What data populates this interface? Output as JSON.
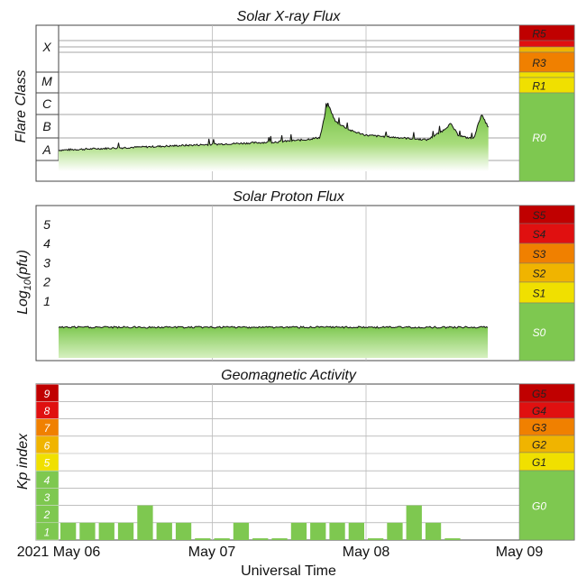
{
  "chart_data": [
    {
      "type": "area",
      "title": "Solar X-ray Flux",
      "ylabel": "Flare Class",
      "ytick_labels": [
        "X",
        "M",
        "C",
        "B",
        "A"
      ],
      "x": [
        0,
        0.2,
        0.4,
        0.6,
        0.8,
        1.0,
        1.2,
        1.4,
        1.6,
        1.7,
        1.75,
        1.8,
        1.9,
        2.0,
        2.2,
        2.4,
        2.5,
        2.55,
        2.6,
        2.65,
        2.7,
        2.75,
        2.8
      ],
      "values_log_wm2": [
        -7.55,
        -7.5,
        -7.45,
        -7.4,
        -7.35,
        -7.3,
        -7.25,
        -7.2,
        -7.1,
        -7.0,
        -5.5,
        -6.3,
        -6.7,
        -6.9,
        -7.0,
        -7.1,
        -6.7,
        -6.4,
        -6.9,
        -7.0,
        -7.05,
        -6.0,
        -6.6
      ],
      "scale_labels": [
        "R5",
        "R3",
        "R1",
        "R0"
      ],
      "scale_colors": [
        "#c00000",
        "#f08000",
        "#f0e000",
        "#7ec850"
      ]
    },
    {
      "type": "area",
      "title": "Solar Proton Flux",
      "ylabel_main": "Log",
      "ylabel_sub": "10",
      "ylabel_tail": "(pfu)",
      "ytick_labels": [
        "5",
        "4",
        "3",
        "2",
        "1"
      ],
      "x": [
        0,
        0.5,
        1.0,
        1.5,
        2.0,
        2.5,
        2.8
      ],
      "values_log_pfu": [
        -0.15,
        -0.14,
        -0.16,
        -0.15,
        -0.14,
        -0.15,
        -0.15
      ],
      "scale_labels": [
        "S5",
        "S4",
        "S3",
        "S2",
        "S1",
        "S0"
      ],
      "scale_colors": [
        "#c00000",
        "#e01010",
        "#f08000",
        "#f0b400",
        "#f0e000",
        "#7ec850"
      ]
    },
    {
      "type": "bar",
      "title": "Geomagnetic Activity",
      "ylabel": "Kp index",
      "ytick_labels": [
        "9",
        "8",
        "7",
        "6",
        "5",
        "4",
        "3",
        "2",
        "1"
      ],
      "ylim": [
        0,
        9
      ],
      "x_interval_hours": 3,
      "kp_values": [
        1,
        1,
        1,
        1,
        2,
        1,
        1,
        0.1,
        0.1,
        1,
        0.1,
        0.1,
        1,
        1,
        1,
        1,
        0.1,
        1,
        2,
        1,
        0.1
      ],
      "scale_labels": [
        "G5",
        "G4",
        "G3",
        "G2",
        "G1",
        "G0"
      ],
      "scale_colors": [
        "#c00000",
        "#e01010",
        "#f08000",
        "#f0b400",
        "#f0e000",
        "#7ec850"
      ]
    }
  ],
  "x_axis": {
    "tick_labels": [
      "2021 May 06",
      "May 07",
      "May 08",
      "May 09"
    ],
    "xlabel": "Universal Time"
  },
  "colors": {
    "green": "#7ec850",
    "yellow": "#f0e000",
    "orange": "#f08000",
    "red": "#c00000",
    "grid": "#bbbbbb"
  }
}
